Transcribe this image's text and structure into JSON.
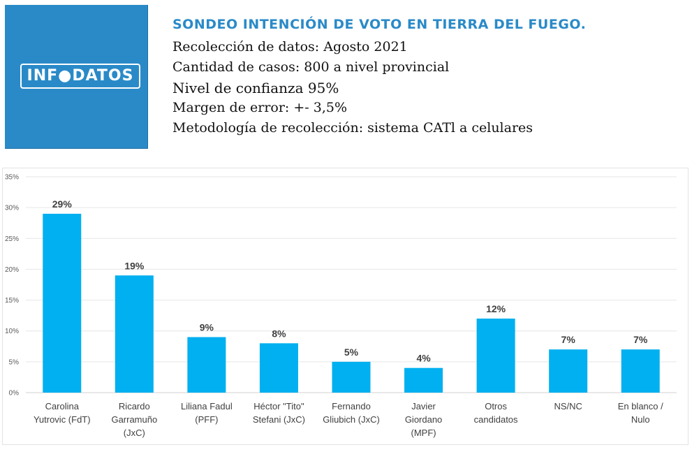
{
  "logo": {
    "text": "INF●DATOS",
    "bg_color": "#2a8ac8"
  },
  "header": {
    "title": "SONDEO INTENCIÓN  DE VOTO EN TIERRA DEL FUEGO.",
    "lines": [
      "Recolección de datos: Agosto 2021",
      "Cantidad de casos: 800 a nivel provincial",
      "Nivel de confianza 95%",
      "Margen de error: +- 3,5%",
      "Metodología  de  recolección: sistema CATl a celulares"
    ]
  },
  "chart_data": {
    "type": "bar",
    "categories": [
      [
        "Carolina",
        "Yutrovic (FdT)"
      ],
      [
        "Ricardo",
        "Garramuño",
        "(JxC)"
      ],
      [
        "Liliana Fadul",
        "(PFF)"
      ],
      [
        "Héctor \"Tito\"",
        "Stefani (JxC)"
      ],
      [
        "Fernando",
        "Gliubich (JxC)"
      ],
      [
        "Javier",
        "Giordano",
        "(MPF)"
      ],
      [
        "Otros",
        "candidatos"
      ],
      [
        "NS/NC"
      ],
      [
        "En blanco /",
        "Nulo"
      ]
    ],
    "values": [
      29,
      19,
      9,
      8,
      5,
      4,
      12,
      7,
      7
    ],
    "data_labels": [
      "29%",
      "19%",
      "9%",
      "8%",
      "5%",
      "4%",
      "12%",
      "7%",
      "7%"
    ],
    "yticks": [
      "0%",
      "5%",
      "10%",
      "15%",
      "20%",
      "25%",
      "30%",
      "35%"
    ],
    "ylim": [
      0,
      35
    ],
    "grid": true,
    "bar_color": "#00b0f0"
  }
}
